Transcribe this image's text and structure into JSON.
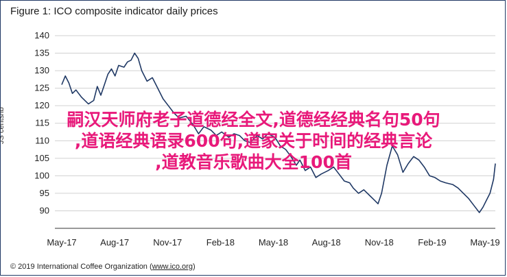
{
  "page": {
    "title": "Figure 1: ICO composite indicator daily prices",
    "ylabel_fragment": "JS cents/lb",
    "copyright_prefix": "© 2019 International Coffee Organization (",
    "copyright_link": "www.ico.org",
    "copyright_suffix": ")",
    "overlay_lines": [
      "嗣汉天师府老子道德经全文,道德经经典名句50句",
      ",道语经典语录600句,道家关于时间的经典言论",
      ",道教音乐歌曲大全100首"
    ],
    "colors": {
      "line": "#1f3864",
      "grid": "#d0d0d0",
      "overlay": "#e8197a"
    }
  },
  "chart_data": {
    "type": "line",
    "title": "Figure 1: ICO composite indicator daily prices",
    "ylabel": "US cents/lb",
    "xlabel": "",
    "ylim": [
      85,
      140
    ],
    "yticks": [
      90,
      95,
      100,
      105,
      110,
      115,
      120,
      125,
      130,
      135,
      140
    ],
    "xticks": [
      "May-17",
      "Aug-17",
      "Nov-17",
      "Feb-18",
      "May-18",
      "Aug-18",
      "Nov-18",
      "Feb-19",
      "May-19"
    ],
    "grid": true,
    "series": [
      {
        "values": [
          [
            0.0,
            126.0
          ],
          [
            0.1,
            128.5
          ],
          [
            0.2,
            126.5
          ],
          [
            0.3,
            123.5
          ],
          [
            0.4,
            124.5
          ],
          [
            0.55,
            122.5
          ],
          [
            0.75,
            120.5
          ],
          [
            0.9,
            121.5
          ],
          [
            1.0,
            125.5
          ],
          [
            1.1,
            123.0
          ],
          [
            1.2,
            126.0
          ],
          [
            1.3,
            129.0
          ],
          [
            1.4,
            130.5
          ],
          [
            1.5,
            128.5
          ],
          [
            1.6,
            131.5
          ],
          [
            1.75,
            131.0
          ],
          [
            1.85,
            132.5
          ],
          [
            1.95,
            133.0
          ],
          [
            2.05,
            135.0
          ],
          [
            2.15,
            133.5
          ],
          [
            2.25,
            130.0
          ],
          [
            2.4,
            127.0
          ],
          [
            2.55,
            128.0
          ],
          [
            2.7,
            125.0
          ],
          [
            2.85,
            122.0
          ],
          [
            3.0,
            120.0
          ],
          [
            3.15,
            118.0
          ],
          [
            3.3,
            116.5
          ],
          [
            3.5,
            117.0
          ],
          [
            3.7,
            114.5
          ],
          [
            3.85,
            112.0
          ],
          [
            4.0,
            114.0
          ],
          [
            4.2,
            113.0
          ],
          [
            4.35,
            111.5
          ],
          [
            4.5,
            112.5
          ],
          [
            4.7,
            111.0
          ],
          [
            4.85,
            112.0
          ],
          [
            5.0,
            111.5
          ],
          [
            5.15,
            110.0
          ],
          [
            5.3,
            109.5
          ],
          [
            5.5,
            111.5
          ],
          [
            5.65,
            110.5
          ],
          [
            5.8,
            112.0
          ],
          [
            6.0,
            111.0
          ],
          [
            6.15,
            108.5
          ],
          [
            6.3,
            107.5
          ],
          [
            6.45,
            105.5
          ],
          [
            6.6,
            103.0
          ],
          [
            6.7,
            104.5
          ],
          [
            6.85,
            101.5
          ],
          [
            7.0,
            102.5
          ],
          [
            7.15,
            99.5
          ],
          [
            7.3,
            100.5
          ],
          [
            7.5,
            101.5
          ],
          [
            7.65,
            102.5
          ],
          [
            7.8,
            100.5
          ],
          [
            7.95,
            98.5
          ],
          [
            8.1,
            98.0
          ],
          [
            8.2,
            96.5
          ],
          [
            8.35,
            95.0
          ],
          [
            8.5,
            96.0
          ],
          [
            8.7,
            94.0
          ],
          [
            8.8,
            93.0
          ],
          [
            8.9,
            92.0
          ],
          [
            9.0,
            95.0
          ],
          [
            9.15,
            103.0
          ],
          [
            9.3,
            108.5
          ],
          [
            9.45,
            106.0
          ],
          [
            9.6,
            101.0
          ],
          [
            9.75,
            103.5
          ],
          [
            9.9,
            105.5
          ],
          [
            10.05,
            104.5
          ],
          [
            10.2,
            102.5
          ],
          [
            10.35,
            100.0
          ],
          [
            10.5,
            99.5
          ],
          [
            10.65,
            98.5
          ],
          [
            10.8,
            98.0
          ],
          [
            11.0,
            97.5
          ],
          [
            11.15,
            96.5
          ],
          [
            11.3,
            95.0
          ],
          [
            11.45,
            93.5
          ],
          [
            11.6,
            91.5
          ],
          [
            11.75,
            89.5
          ],
          [
            11.85,
            91.0
          ],
          [
            11.95,
            93.0
          ],
          [
            12.05,
            95.0
          ],
          [
            12.15,
            99.0
          ],
          [
            12.2,
            103.5
          ]
        ]
      }
    ]
  }
}
